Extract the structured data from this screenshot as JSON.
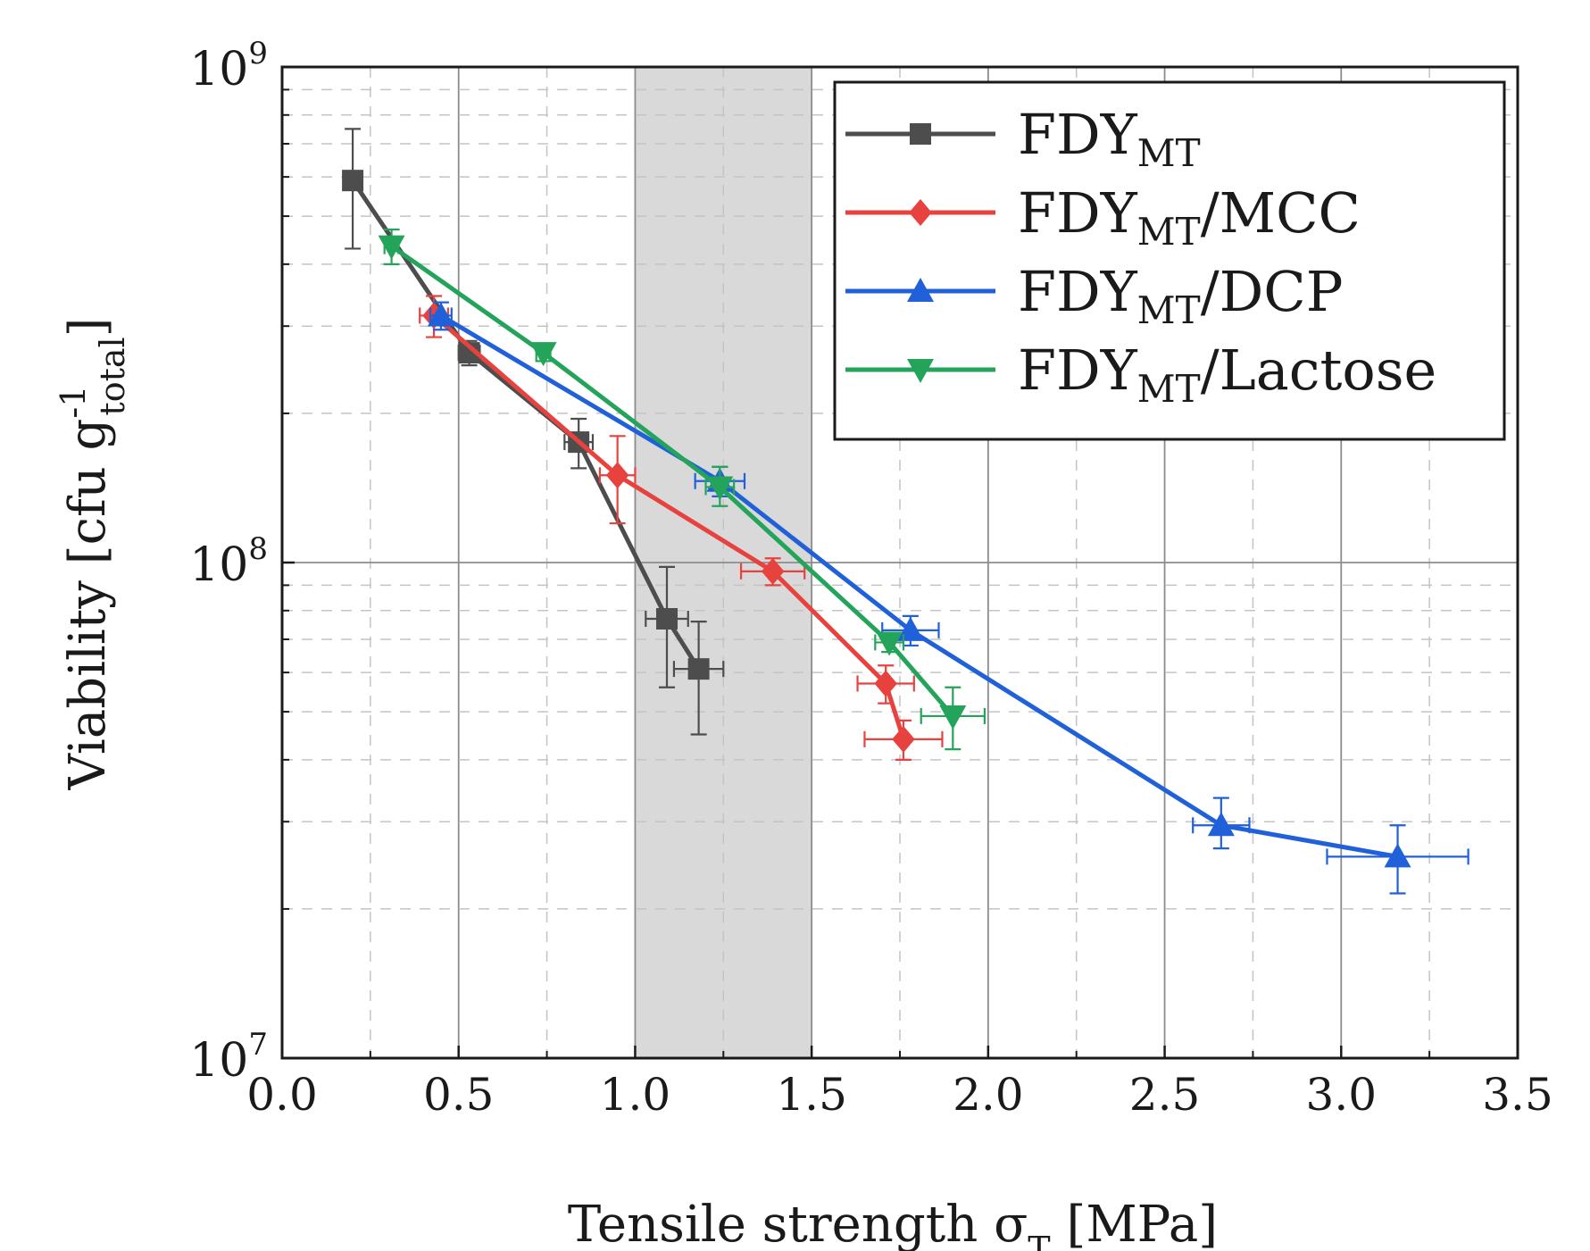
{
  "chart_data": {
    "type": "line",
    "title": "",
    "xlabel": {
      "main": "Tensile strength σ",
      "sub": "T",
      "unit": "[MPa]"
    },
    "ylabel": {
      "main": "Viability [cfu g",
      "sup": "-1",
      "sub": "total",
      "close": "]"
    },
    "xlim": [
      0.0,
      3.5
    ],
    "ylim": [
      10000000,
      1000000000
    ],
    "yscale": "log",
    "x_ticks": [
      0.0,
      0.5,
      1.0,
      1.5,
      2.0,
      2.5,
      3.0,
      3.5
    ],
    "x_tick_labels": [
      "0.0",
      "0.5",
      "1.0",
      "1.5",
      "2.0",
      "2.5",
      "3.0",
      "3.5"
    ],
    "y_tick_labels": [
      {
        "value": 10000000,
        "base": "10",
        "exp": "7"
      },
      {
        "value": 100000000,
        "base": "10",
        "exp": "8"
      },
      {
        "value": 1000000000,
        "base": "10",
        "exp": "9"
      }
    ],
    "grid": true,
    "shaded_region": {
      "x_start": 1.0,
      "x_end": 1.5,
      "color": "#d9d9d9"
    },
    "legend_position": "top-right",
    "series": [
      {
        "name": "FDY",
        "name_sub": "MT",
        "name_suffix": "",
        "color": "#4d4d4d",
        "marker": "square",
        "points": [
          {
            "x": 0.2,
            "y": 590000000,
            "xerr": 0.0,
            "ylo": 430000000,
            "yhi": 750000000
          },
          {
            "x": 0.53,
            "y": 265000000,
            "xerr": 0.03,
            "ylo": 250000000,
            "yhi": 280000000
          },
          {
            "x": 0.84,
            "y": 175000000,
            "xerr": 0.04,
            "ylo": 155000000,
            "yhi": 195000000
          },
          {
            "x": 1.09,
            "y": 77000000,
            "xerr": 0.06,
            "ylo": 56000000,
            "yhi": 98000000
          },
          {
            "x": 1.18,
            "y": 61000000,
            "xerr": 0.07,
            "ylo": 45000000,
            "yhi": 76000000
          }
        ]
      },
      {
        "name": "FDY",
        "name_sub": "MT",
        "name_suffix": "/MCC",
        "color": "#e8423f",
        "marker": "diamond",
        "points": [
          {
            "x": 0.43,
            "y": 315000000,
            "xerr": 0.04,
            "ylo": 285000000,
            "yhi": 345000000
          },
          {
            "x": 0.95,
            "y": 150000000,
            "xerr": 0.05,
            "ylo": 120000000,
            "yhi": 180000000
          },
          {
            "x": 1.39,
            "y": 96000000,
            "xerr": 0.09,
            "ylo": 90000000,
            "yhi": 102000000
          },
          {
            "x": 1.71,
            "y": 57000000,
            "xerr": 0.08,
            "ylo": 52000000,
            "yhi": 62000000
          },
          {
            "x": 1.76,
            "y": 44000000,
            "xerr": 0.11,
            "ylo": 40000000,
            "yhi": 48000000
          }
        ]
      },
      {
        "name": "FDY",
        "name_sub": "MT",
        "name_suffix": "/DCP",
        "color": "#2060d8",
        "marker": "triangle-up",
        "points": [
          {
            "x": 0.45,
            "y": 315000000,
            "xerr": 0.03,
            "ylo": 295000000,
            "yhi": 335000000
          },
          {
            "x": 1.24,
            "y": 146000000,
            "xerr": 0.07,
            "ylo": 136000000,
            "yhi": 156000000
          },
          {
            "x": 1.78,
            "y": 73000000,
            "xerr": 0.08,
            "ylo": 68000000,
            "yhi": 78000000
          },
          {
            "x": 2.66,
            "y": 29500000,
            "xerr": 0.08,
            "ylo": 26500000,
            "yhi": 33500000
          },
          {
            "x": 3.16,
            "y": 25500000,
            "xerr": 0.2,
            "ylo": 21500000,
            "yhi": 29500000
          }
        ]
      },
      {
        "name": "FDY",
        "name_sub": "MT",
        "name_suffix": "/Lactose",
        "color": "#24a35a",
        "marker": "triangle-down",
        "points": [
          {
            "x": 0.31,
            "y": 435000000,
            "xerr": 0.02,
            "ylo": 400000000,
            "yhi": 470000000
          },
          {
            "x": 0.74,
            "y": 265000000,
            "xerr": 0.02,
            "ylo": 255000000,
            "yhi": 275000000
          },
          {
            "x": 1.24,
            "y": 142000000,
            "xerr": 0.04,
            "ylo": 130000000,
            "yhi": 156000000
          },
          {
            "x": 1.72,
            "y": 69000000,
            "xerr": 0.04,
            "ylo": 66000000,
            "yhi": 72000000
          },
          {
            "x": 1.9,
            "y": 49000000,
            "xerr": 0.09,
            "ylo": 42000000,
            "yhi": 56000000
          }
        ]
      }
    ]
  }
}
